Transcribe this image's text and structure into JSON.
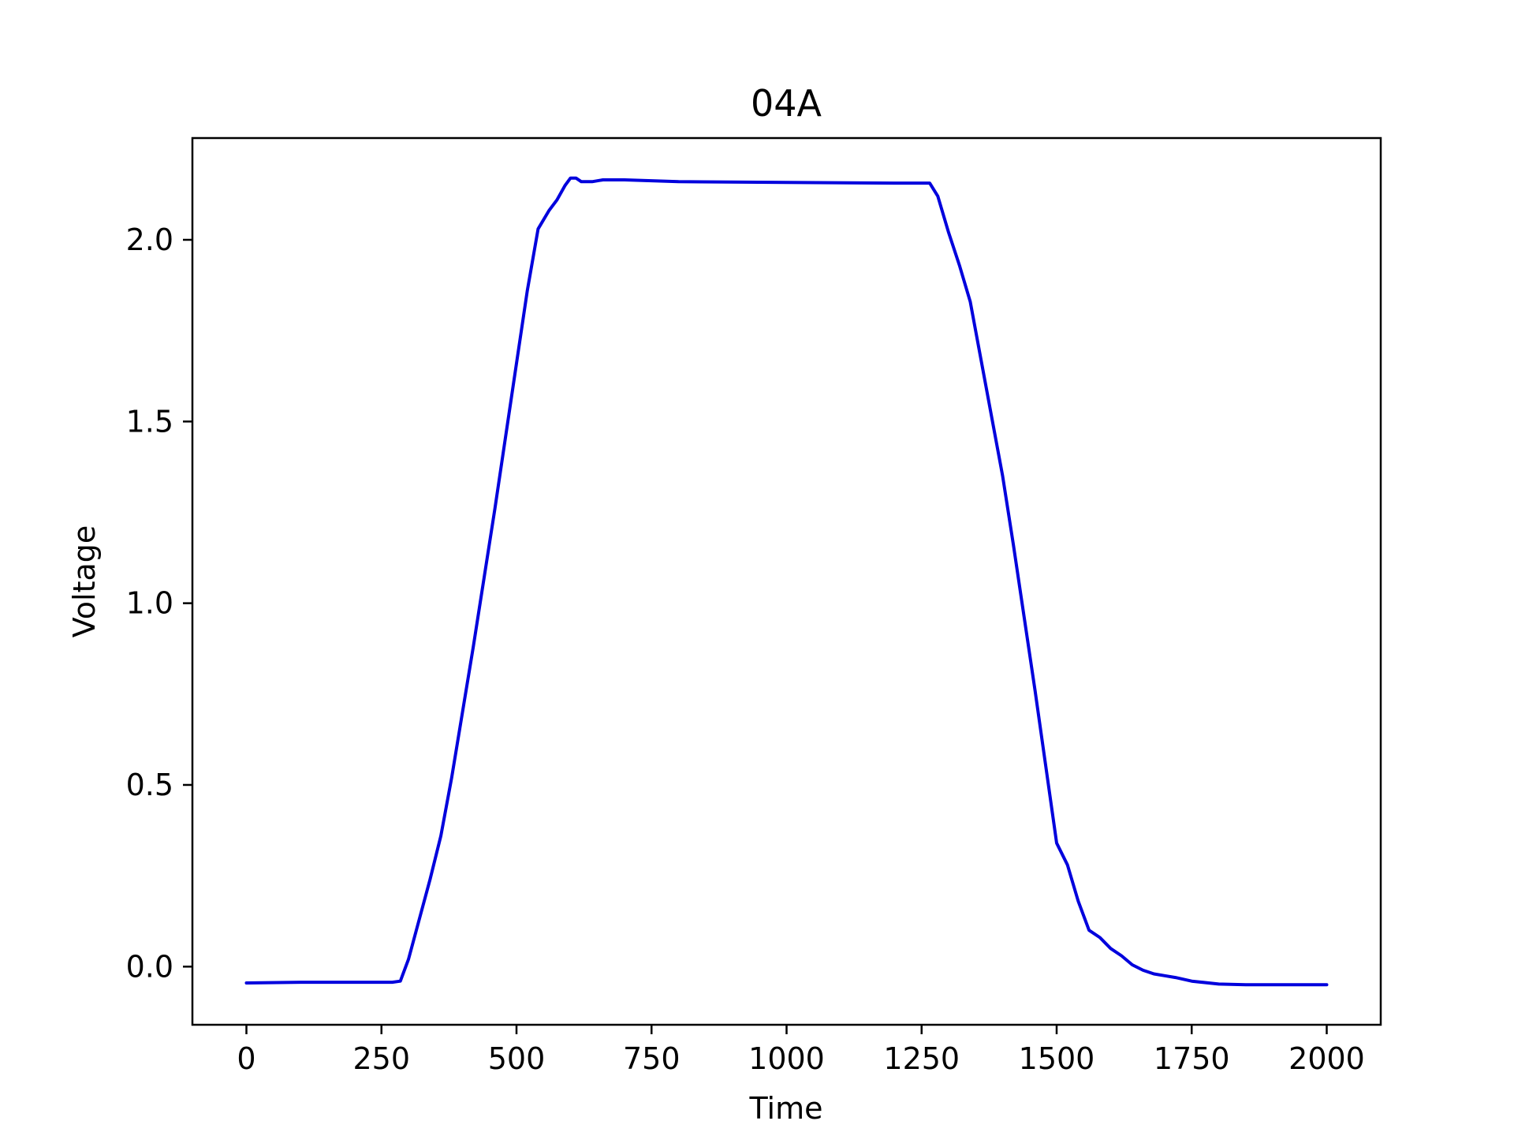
{
  "chart_data": {
    "type": "line",
    "title": "04A",
    "xlabel": "Time",
    "ylabel": "Voltage",
    "xlim": [
      -100,
      2100
    ],
    "ylim": [
      -0.16,
      2.28
    ],
    "xticks": [
      0,
      250,
      500,
      750,
      1000,
      1250,
      1500,
      1750,
      2000
    ],
    "xtick_labels": [
      "0",
      "250",
      "500",
      "750",
      "1000",
      "1250",
      "1500",
      "1750",
      "2000"
    ],
    "yticks": [
      0.0,
      0.5,
      1.0,
      1.5,
      2.0
    ],
    "ytick_labels": [
      "0.0",
      "0.5",
      "1.0",
      "1.5",
      "2.0"
    ],
    "grid": false,
    "series": [
      {
        "color": "#0000dd",
        "x": [
          0,
          100,
          150,
          270,
          285,
          300,
          320,
          340,
          360,
          380,
          400,
          420,
          440,
          460,
          480,
          500,
          520,
          540,
          560,
          575,
          590,
          600,
          610,
          620,
          640,
          660,
          700,
          800,
          1000,
          1200,
          1265,
          1280,
          1300,
          1320,
          1340,
          1360,
          1380,
          1400,
          1420,
          1440,
          1460,
          1480,
          1500,
          1520,
          1540,
          1560,
          1580,
          1600,
          1620,
          1640,
          1660,
          1680,
          1700,
          1720,
          1750,
          1800,
          1850,
          1900,
          1950,
          2000
        ],
        "y": [
          -0.045,
          -0.043,
          -0.043,
          -0.043,
          -0.04,
          0.02,
          0.13,
          0.24,
          0.36,
          0.52,
          0.7,
          0.88,
          1.07,
          1.26,
          1.46,
          1.66,
          1.86,
          2.03,
          2.08,
          2.11,
          2.15,
          2.17,
          2.17,
          2.16,
          2.16,
          2.165,
          2.165,
          2.16,
          2.158,
          2.156,
          2.156,
          2.12,
          2.02,
          1.93,
          1.83,
          1.67,
          1.51,
          1.35,
          1.16,
          0.96,
          0.76,
          0.55,
          0.34,
          0.28,
          0.18,
          0.1,
          0.08,
          0.05,
          0.03,
          0.005,
          -0.01,
          -0.02,
          -0.025,
          -0.03,
          -0.04,
          -0.048,
          -0.05,
          -0.05,
          -0.05,
          -0.05
        ]
      }
    ]
  }
}
